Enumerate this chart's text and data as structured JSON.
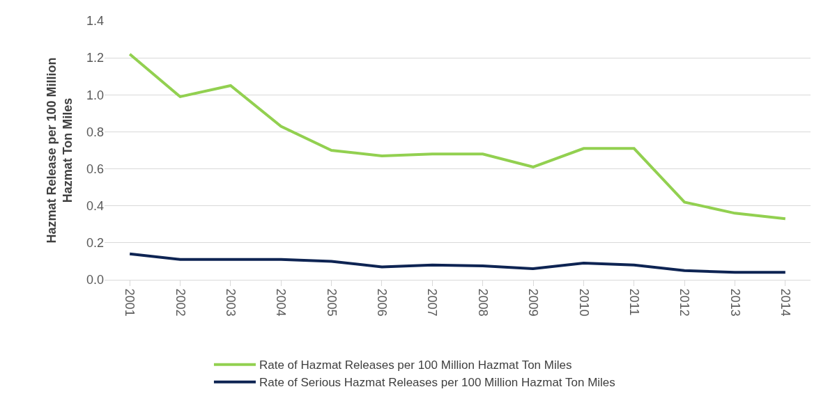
{
  "chart_data": {
    "type": "line",
    "ylabel": "Hazmat Release per 100 Million Hazmat Ton Miles",
    "categories": [
      "2001",
      "2002",
      "2003",
      "2004",
      "2005",
      "2006",
      "2007",
      "2008",
      "2009",
      "2010",
      "2011",
      "2012",
      "2013",
      "2014"
    ],
    "series": [
      {
        "name": "Rate of Hazmat Releases per 100 Million Hazmat Ton Miles",
        "color": "#92d050",
        "values": [
          1.22,
          0.99,
          1.05,
          0.83,
          0.7,
          0.67,
          0.68,
          0.68,
          0.61,
          0.71,
          0.71,
          0.42,
          0.36,
          0.33
        ]
      },
      {
        "name": "Rate of Serious Hazmat Releases per 100 Million Hazmat Ton Miles",
        "color": "#0e2453",
        "values": [
          0.14,
          0.11,
          0.11,
          0.11,
          0.1,
          0.07,
          0.08,
          0.075,
          0.06,
          0.09,
          0.08,
          0.05,
          0.04,
          0.04
        ]
      }
    ],
    "ylim": [
      0,
      1.4
    ],
    "yticks": [
      {
        "value": 0,
        "label": "0.0"
      },
      {
        "value": 0.2,
        "label": "0.2"
      },
      {
        "value": 0.4,
        "label": "0.4"
      },
      {
        "value": 0.6,
        "label": "0.6"
      },
      {
        "value": 0.8,
        "label": "0.8"
      },
      {
        "value": 1.0,
        "label": "1.0"
      },
      {
        "value": 1.2,
        "label": "1.2"
      },
      {
        "value": 1.4,
        "label": "1.4"
      }
    ],
    "grid": "y",
    "legend": "bottom",
    "marker": "none",
    "line_style": "solid"
  }
}
